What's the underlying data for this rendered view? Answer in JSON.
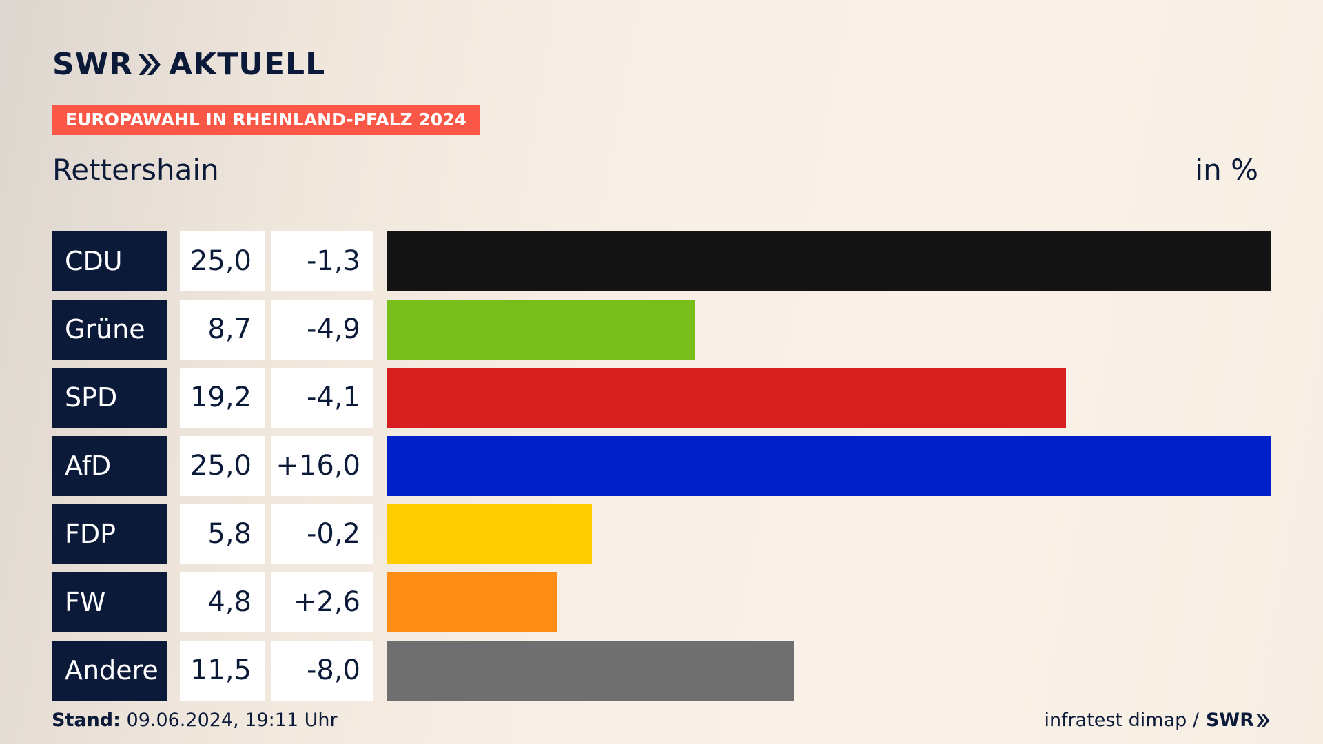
{
  "header": {
    "brand_left": "SWR",
    "brand_right": "AKTUELL",
    "badge": "EUROPAWAHL IN RHEINLAND-PFALZ 2024",
    "place": "Rettershain",
    "unit": "in %"
  },
  "footer": {
    "stand_label": "Stand:",
    "stand_value": "09.06.2024, 19:11 Uhr",
    "source": "infratest dimap /",
    "source_brand": "SWR"
  },
  "colors": {
    "navy": "#0c1a3a",
    "badge": "#fb5746"
  },
  "chart_data": {
    "type": "bar",
    "title": "Rettershain",
    "unit": "in %",
    "categories": [
      "CDU",
      "Grüne",
      "SPD",
      "AfD",
      "FDP",
      "FW",
      "Andere"
    ],
    "values": [
      25.0,
      8.7,
      19.2,
      25.0,
      5.8,
      4.8,
      11.5
    ],
    "value_labels": [
      "25,0",
      "8,7",
      "19,2",
      "25,0",
      "5,8",
      "4,8",
      "11,5"
    ],
    "diff_labels": [
      "-1,3",
      "-4,9",
      "-4,1",
      "+16,0",
      "-0,2",
      "+2,6",
      "-8,0"
    ],
    "diffs": [
      -1.3,
      -4.9,
      -4.1,
      16.0,
      -0.2,
      2.6,
      -8.0
    ],
    "colors": [
      "#141414",
      "#7abe1c",
      "#d81f1f",
      "#0020c8",
      "#ffcc00",
      "#ff8c14",
      "#6f6f6f"
    ],
    "xlim": [
      0,
      25.0
    ],
    "orientation": "horizontal"
  }
}
